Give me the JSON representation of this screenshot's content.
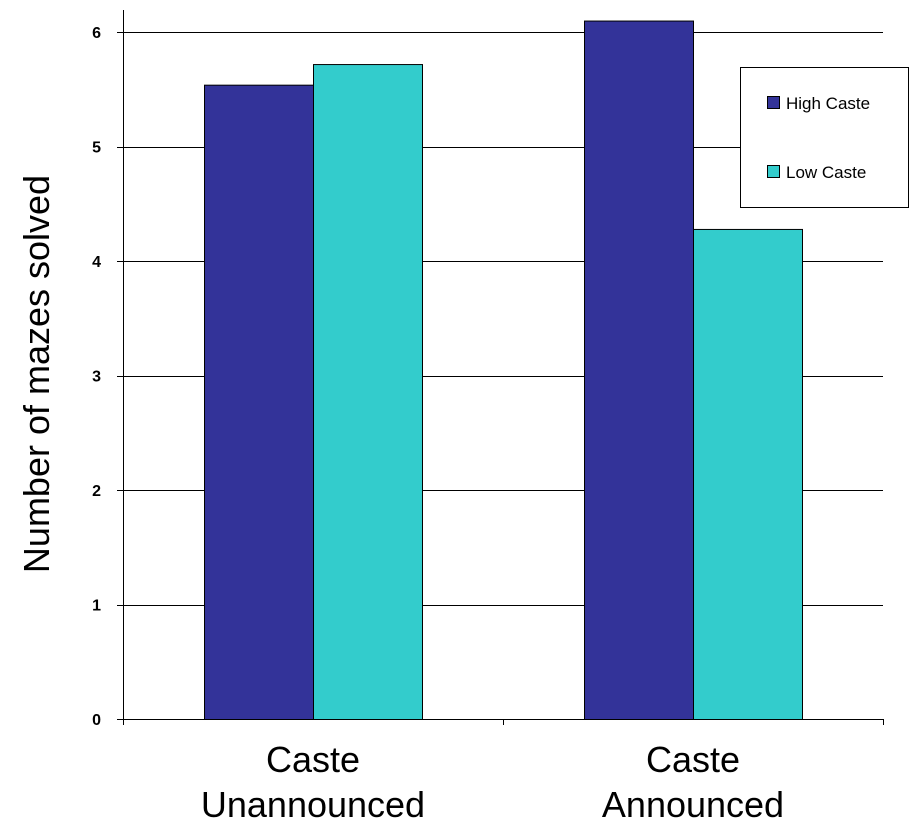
{
  "chart_data": {
    "type": "bar",
    "title": "",
    "xlabel": "",
    "ylabel": "Number of mazes solved",
    "categories": [
      [
        "Caste",
        "Unannounced"
      ],
      [
        "Caste",
        "Announced"
      ]
    ],
    "series": [
      {
        "name": "High Caste",
        "color": "#333399",
        "values": [
          5.54,
          6.1
        ]
      },
      {
        "name": "Low Caste",
        "color": "#33CCCC",
        "values": [
          5.72,
          4.28
        ]
      }
    ],
    "ylim": [
      0,
      6
    ],
    "yticks": [
      0,
      1,
      2,
      3,
      4,
      5,
      6
    ],
    "grid": true,
    "legend_position": "top-right"
  }
}
